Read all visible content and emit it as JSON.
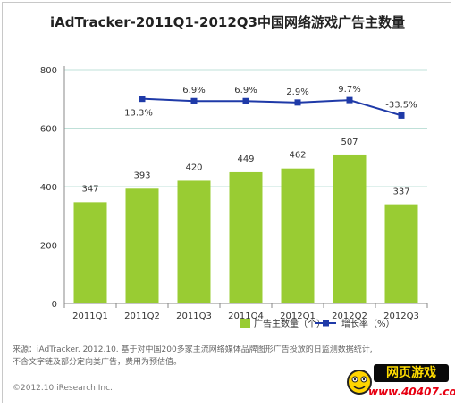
{
  "title": "iAdTracker-2011Q1-2012Q3中国网络游戏广告主数量",
  "chart_data": {
    "type": "bar",
    "categories": [
      "2011Q1",
      "2011Q2",
      "2011Q3",
      "2011Q4",
      "2012Q1",
      "2012Q2",
      "2012Q3"
    ],
    "series": [
      {
        "name": "广告主数量（个）",
        "type": "bar",
        "color": "#99cc33",
        "values": [
          347,
          393,
          420,
          449,
          462,
          507,
          337
        ],
        "labels": [
          "347",
          "393",
          "420",
          "449",
          "462",
          "507",
          "337"
        ]
      },
      {
        "name": "增长率（%）",
        "type": "line",
        "color": "#1f3aa8",
        "values": [
          null,
          13.3,
          6.9,
          6.9,
          2.9,
          9.7,
          -33.5
        ],
        "labels": [
          "",
          "13.3%",
          "6.9%",
          "6.9%",
          "2.9%",
          "9.7%",
          "-33.5%"
        ]
      }
    ],
    "yticks": [
      "0",
      "200",
      "400",
      "600",
      "800"
    ],
    "ylim": [
      0,
      800
    ],
    "grid": true,
    "legend_position": "bottom-right"
  },
  "source_lines": [
    "来源：iAdTracker. 2012.10. 基于对中国200多家主流网络媒体品牌图形广告投放的日监测数据统计,",
    "不含文字链及部分定向类广告，费用为预估值。"
  ],
  "copyright": "©2012.10 iResearch Inc.",
  "logo": {
    "name": "网页游戏",
    "url": "www.40407.com"
  }
}
